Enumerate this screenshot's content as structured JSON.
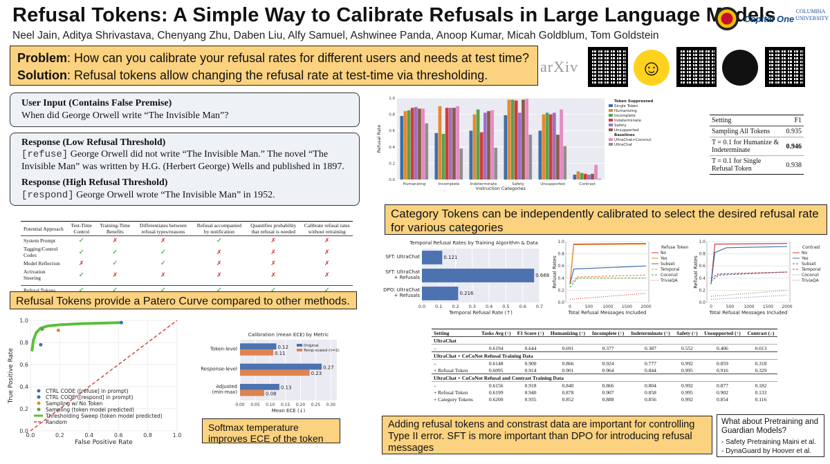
{
  "header": {
    "title": "Refusal Tokens: A Simple Way to Calibrate Refusals in Large Language Models",
    "authors": "Neel Jain, Aditya Shrivastava, Chenyang Zhu, Daben Liu, Alfy Samuel, Ashwinee Panda, Anoop Kumar, Micah Goldblum, Tom Goldstein",
    "logos": {
      "capitalone": "Capital One",
      "columbia": "COLUMBIA UNIVERSITY"
    },
    "links": {
      "arxiv": "arXiv"
    }
  },
  "problem": {
    "problem_label": "Problem",
    "problem_text": ": How can you calibrate your refusal rates for different users and needs at test time?",
    "solution_label": "Solution",
    "solution_text": ": Refusal tokens allow changing the refusal rate at test-time via thresholding."
  },
  "example": {
    "input_head": "User Input (Contains False Premise)",
    "input_text": "When did George Orwell write “The Invisible Man”?",
    "low_head": "Response (Low Refusal Threshold)",
    "low_token": "[refuse]",
    "low_text": " George Orwell did not write “The Invisible Man.”  The novel “The Invisible Man” was written by H.G. (Herbert George) Wells and published in 1897.",
    "high_head": "Response (High Refusal Threshold)",
    "high_token": "[respond]",
    "high_text": " George Orwell wrote “The Invisible Man” in 1952."
  },
  "approach_table": {
    "headers": [
      "Potential Approach",
      "Test-Time Control",
      "Training-Time Benefits",
      "Differentiates between refusal types/reasons",
      "Refusal accompanied by notification",
      "Quantifies probability that refusal is needed",
      "Calibrate refusal rates without retraining"
    ],
    "rows": [
      {
        "name": "System Prompt",
        "marks": [
          "y",
          "n",
          "n",
          "y",
          "n",
          "n"
        ]
      },
      {
        "name": "Tagging/Control Codes",
        "marks": [
          "y",
          "y",
          "y",
          "n",
          "n",
          "n"
        ]
      },
      {
        "name": "Model Reflection",
        "marks": [
          "n",
          "y",
          "y",
          "n",
          "n",
          "n"
        ]
      },
      {
        "name": "Activation Steering",
        "marks": [
          "y",
          "n",
          "n",
          "n",
          "n",
          "n"
        ]
      }
    ],
    "final": {
      "name": "Refusal Tokens",
      "marks": [
        "y",
        "y",
        "y",
        "y",
        "y",
        "y"
      ]
    },
    "check": "✓",
    "cross": "✗"
  },
  "callouts": {
    "pareto": "Refusal Tokens provide a Patero Curve compared to other methods.",
    "category": "Category Tokens can be independently calibrated to select the desired refusal rate for various categories",
    "softmax": "Softmax temperature improves ECE of the token",
    "contrast": "Adding refusal tokens and constrast data are important for controlling Type II error. SFT is more important than DPO for introducing refusal messages",
    "pretrain_title": "What about Pretraining and Guardian Models?",
    "pretrain_items": [
      "- Safety Pretraining Maini et al.",
      "- DynaGuard by Hoover et al."
    ]
  },
  "f1_table": {
    "headers": [
      "Setting",
      "F1"
    ],
    "rows": [
      [
        "Sampling All Tokens",
        "0.935"
      ],
      [
        "T = 0.1 for Humanize & Indeterminate",
        "0.946"
      ],
      [
        "T = 0.1 for Single Refusal Token",
        "0.938"
      ]
    ]
  },
  "results_table": {
    "headers": [
      "Setting",
      "Tasks Avg (↑)",
      "F1 Score (↑)",
      "Humanizing (↑)",
      "Incomplete (↑)",
      "Indeterminate (↑)",
      "Safety (↑)",
      "Unsupported (↑)",
      "Contrast (↓)"
    ],
    "sections": [
      {
        "title": "UltraChat",
        "rows": [
          [
            "–",
            "0.6194",
            "0.644",
            "0.691",
            "0.377",
            "0.387",
            "0.552",
            "0.406",
            "0.013"
          ]
        ]
      },
      {
        "title": "UltraChat + CoCoNot Refusal Training Data",
        "rows": [
          [
            "–",
            "0.6148",
            "0.900",
            "0.866",
            "0.924",
            "0.777",
            "0.992",
            "0.859",
            "0.318"
          ],
          [
            "+ Refusal Token",
            "0.6095",
            "0.914",
            "0.901",
            "0.964",
            "0.844",
            "0.995",
            "0.916",
            "0.329"
          ]
        ]
      },
      {
        "title": "UltraChat + CoCoNot Refusal and Contrast Training Data",
        "rows": [
          [
            "–",
            "0.6156",
            "0.918",
            "0.840",
            "0.866",
            "0.804",
            "0.992",
            "0.877",
            "0.182"
          ],
          [
            "+ Refusal Token",
            "0.6199",
            "0.940",
            "0.878",
            "0.907",
            "0.858",
            "0.995",
            "0.902",
            "0.133"
          ],
          [
            "+ Category Tokens",
            "0.6200",
            "0.935",
            "0.852",
            "0.888",
            "0.856",
            "0.992",
            "0.854",
            "0.116"
          ]
        ]
      }
    ]
  },
  "chart_data": [
    {
      "id": "category_bars",
      "type": "bar",
      "xlabel": "Instruction Categories",
      "ylabel": "Refusal Rate",
      "ylim": [
        0,
        1.0
      ],
      "yticks": [
        "0.0",
        "0.2",
        "0.4",
        "0.6",
        "0.8",
        "1.0"
      ],
      "categories": [
        "Humanizing",
        "Incomplete",
        "Indeterminate",
        "Safety",
        "Unsupported",
        "Contrast"
      ],
      "legend_title": "Token Suppressed",
      "legend_sub": "Baselines",
      "series": [
        {
          "name": "Single Token",
          "color": "#3f6fa8",
          "values": [
            0.78,
            0.57,
            0.6,
            0.79,
            0.6,
            0.06
          ]
        },
        {
          "name": "Humanizing",
          "color": "#e48a2f",
          "values": [
            0.84,
            0.9,
            0.8,
            0.98,
            0.8,
            0.1
          ]
        },
        {
          "name": "Incomplete",
          "color": "#59a14f",
          "values": [
            0.85,
            0.56,
            0.86,
            0.98,
            0.82,
            0.08
          ]
        },
        {
          "name": "Indeterminate",
          "color": "#d13b3b",
          "values": [
            0.88,
            0.88,
            0.58,
            0.97,
            0.8,
            0.07
          ]
        },
        {
          "name": "Safety",
          "color": "#9b72c4",
          "values": [
            0.89,
            0.88,
            0.82,
            0.82,
            0.82,
            0.06
          ]
        },
        {
          "name": "Unsupported",
          "color": "#8c5a4a",
          "values": [
            0.87,
            0.88,
            0.84,
            0.98,
            0.55,
            0.07
          ]
        },
        {
          "name": "UltraChat+Coconut",
          "color": "#e68ac3",
          "values": [
            0.87,
            0.9,
            0.85,
            0.99,
            0.86,
            0.18
          ]
        },
        {
          "name": "UltraChat",
          "color": "#8f8f8f",
          "values": [
            0.69,
            0.38,
            0.39,
            0.55,
            0.41,
            0.01
          ]
        }
      ]
    },
    {
      "id": "temporal_hbar",
      "type": "bar",
      "title": "Temporal Refusal Rates by Training Algorithm & Data",
      "xlabel": "Temporal Refusal Rate (↑)",
      "xticks": [
        "0.0",
        "0.1",
        "0.2",
        "0.3",
        "0.4",
        "0.5",
        "0.6",
        "0.7"
      ],
      "categories": [
        "SFT: UltraChat",
        "SFT: UltraChat + Refusals",
        "DPO: UltraChat + Refusals"
      ],
      "values": [
        0.121,
        0.668,
        0.216
      ],
      "labels": [
        "0.121",
        "0.668",
        "0.216"
      ]
    },
    {
      "id": "refusal_lines_1",
      "type": "line",
      "xlabel": "Total Refusal Messages Included",
      "ylabel": "Refusal Rates",
      "xticks": [
        "0",
        "500",
        "1000",
        "1500",
        "2000"
      ],
      "yticks": [
        "0.0",
        "0.2",
        "0.4",
        "0.6",
        "0.8",
        "1.0"
      ],
      "legend_title": "Refuse Token",
      "legend": [
        "No",
        "Yes",
        "Subset",
        "Temporal",
        "Coconut",
        "TriviaQA"
      ]
    },
    {
      "id": "refusal_lines_2",
      "type": "line",
      "xlabel": "Total Refusal Messages Included",
      "ylabel": "Refusal Rates",
      "xticks": [
        "0",
        "500",
        "1000",
        "1500",
        "2000"
      ],
      "yticks": [
        "0.0",
        "0.2",
        "0.4",
        "0.6",
        "0.8",
        "1.0"
      ],
      "legend_title": "Contrast",
      "legend": [
        "No",
        "Yes",
        "Subset",
        "Temporal",
        "Coconut",
        "TriviaQA"
      ]
    },
    {
      "id": "roc",
      "type": "scatter",
      "xlabel": "False Positive Rate",
      "ylabel": "True Positive Rate",
      "xticks": [
        "0.0",
        "0.2",
        "0.4",
        "0.6",
        "0.8",
        "1.0"
      ],
      "yticks": [
        "0.0",
        "0.2",
        "0.4",
        "0.6",
        "0.8",
        "1.0"
      ],
      "legend": [
        "CTRL CODE ([refuse] in prompt)",
        "CTRL CODE ([respond] in prompt)",
        "Sampling w/ No Token",
        "Sampling (token model predicted)",
        "Thresholding Sweep (token model predicted)",
        "Random"
      ],
      "points": [
        {
          "x": 0.07,
          "y": 0.78,
          "color": "#3f6fa8"
        },
        {
          "x": 0.62,
          "y": 0.98,
          "color": "#3f6fa8"
        },
        {
          "x": 0.19,
          "y": 0.91,
          "color": "#e48a2f"
        },
        {
          "x": 0.08,
          "y": 0.92,
          "color": "#59a14f"
        }
      ],
      "sweep": [
        [
          0.01,
          0.72
        ],
        [
          0.02,
          0.82
        ],
        [
          0.04,
          0.89
        ],
        [
          0.07,
          0.93
        ],
        [
          0.12,
          0.95
        ],
        [
          0.2,
          0.96
        ],
        [
          0.35,
          0.97
        ],
        [
          0.62,
          0.98
        ]
      ]
    },
    {
      "id": "ece",
      "type": "bar",
      "title": "Calibration (mean ECE) by Metric",
      "xlabel": "Mean ECE (↓)",
      "xticks": [
        "0.00",
        "0.05",
        "0.10",
        "0.15",
        "0.20",
        "0.25",
        "0.30"
      ],
      "categories": [
        "Token-level",
        "Response-level",
        "Adjusted (min-max)"
      ],
      "series": [
        {
          "name": "Original",
          "color": "#4c72b0",
          "values": [
            0.12,
            0.27,
            0.13
          ]
        },
        {
          "name": "Temp-scaled (τ=2)",
          "color": "#dd8452",
          "values": [
            0.11,
            0.23,
            0.08
          ]
        }
      ]
    }
  ]
}
